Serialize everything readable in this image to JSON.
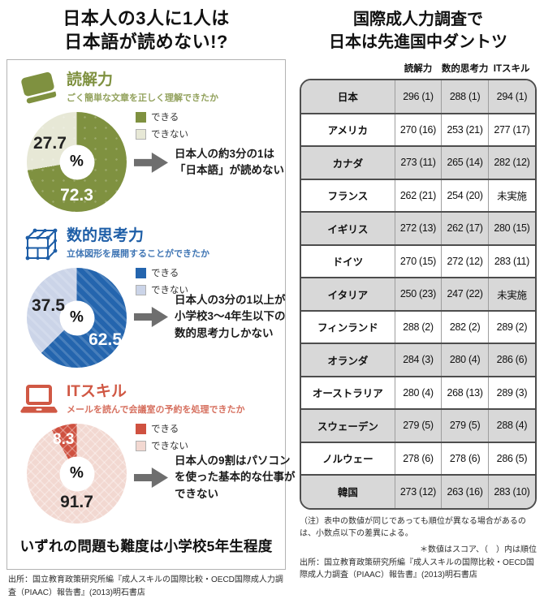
{
  "left": {
    "title": "日本人の3人に1人は\n日本語が読めない!?",
    "conclusion": "いずれの問題も難度は小学校5年生程度",
    "source": "出所：国立教育政策研究所編『成人スキルの国際比較・OECD国際成人力調査（PIAAC）報告書』(2013)明石書店"
  },
  "right": {
    "title": "国際成人力調査で\n日本は先進国中ダントツ",
    "note": "（注）表中の数値が同じであっても順位が異なる場合があるのは、小数点以下の差異による。",
    "score_legend": "＊数値はスコア、（　）内は順位",
    "source": "出所：国立教育政策研究所編『成人スキルの国際比較・OECD国際成人力調査（PIAAC）報告書』(2013)明石書店"
  },
  "chart_data": [
    {
      "type": "pie",
      "title": "読解力",
      "question": "ごく簡単な文章を正しく理解できたか",
      "labels": [
        "できる",
        "できない"
      ],
      "values": [
        72.3,
        27.7
      ],
      "unit": "%",
      "annotation": "日本人の約3分の1は\n「日本語」が読めない",
      "colors": {
        "accent": "#7f9140",
        "can": "#7f9140",
        "cannot": "#e7e8d6"
      },
      "can_slice_at_end": false
    },
    {
      "type": "pie",
      "title": "数的思考力",
      "question": "立体図形を展開することができたか",
      "labels": [
        "できる",
        "できない"
      ],
      "values": [
        62.5,
        37.5
      ],
      "unit": "%",
      "annotation": "日本人の3分の1以上が\n小学校3〜4年生以下の\n数的思考力しかない",
      "colors": {
        "accent": "#1e5ea7",
        "can": "#2465ae",
        "cannot": "#cbd4e8"
      },
      "can_slice_at_end": false
    },
    {
      "type": "pie",
      "title": "ITスキル",
      "question": "メールを読んで会議室の予約を処理できたか",
      "labels": [
        "できる",
        "できない"
      ],
      "values": [
        8.3,
        91.7
      ],
      "unit": "%",
      "annotation": "日本人の9割はパソコン\nを使った基本的な仕事が\nできない",
      "colors": {
        "accent": "#d05844",
        "can": "#cf5140",
        "cannot": "#f2d8d1"
      },
      "can_slice_at_end": true
    },
    {
      "type": "table",
      "title": "国際成人力調査で日本は先進国中ダントツ",
      "columns": [
        "読解力",
        "数的思考力",
        "ITスキル"
      ],
      "rows": [
        [
          "日本",
          "296 (1)",
          "288 (1)",
          "294 (1)"
        ],
        [
          "アメリカ",
          "270 (16)",
          "253 (21)",
          "277 (17)"
        ],
        [
          "カナダ",
          "273 (11)",
          "265 (14)",
          "282 (12)"
        ],
        [
          "フランス",
          "262 (21)",
          "254 (20)",
          "未実施"
        ],
        [
          "イギリス",
          "272 (13)",
          "262 (17)",
          "280 (15)"
        ],
        [
          "ドイツ",
          "270 (15)",
          "272 (12)",
          "283 (11)"
        ],
        [
          "イタリア",
          "250 (23)",
          "247 (22)",
          "未実施"
        ],
        [
          "フィンランド",
          "288 (2)",
          "282 (2)",
          "289 (2)"
        ],
        [
          "オランダ",
          "284 (3)",
          "280 (4)",
          "286 (6)"
        ],
        [
          "オーストラリア",
          "280 (4)",
          "268 (13)",
          "289 (3)"
        ],
        [
          "スウェーデン",
          "279 (5)",
          "279 (5)",
          "288 (4)"
        ],
        [
          "ノルウェー",
          "278 (6)",
          "278 (6)",
          "286 (5)"
        ],
        [
          "韓国",
          "273 (12)",
          "263 (16)",
          "283 (10)"
        ]
      ]
    }
  ]
}
